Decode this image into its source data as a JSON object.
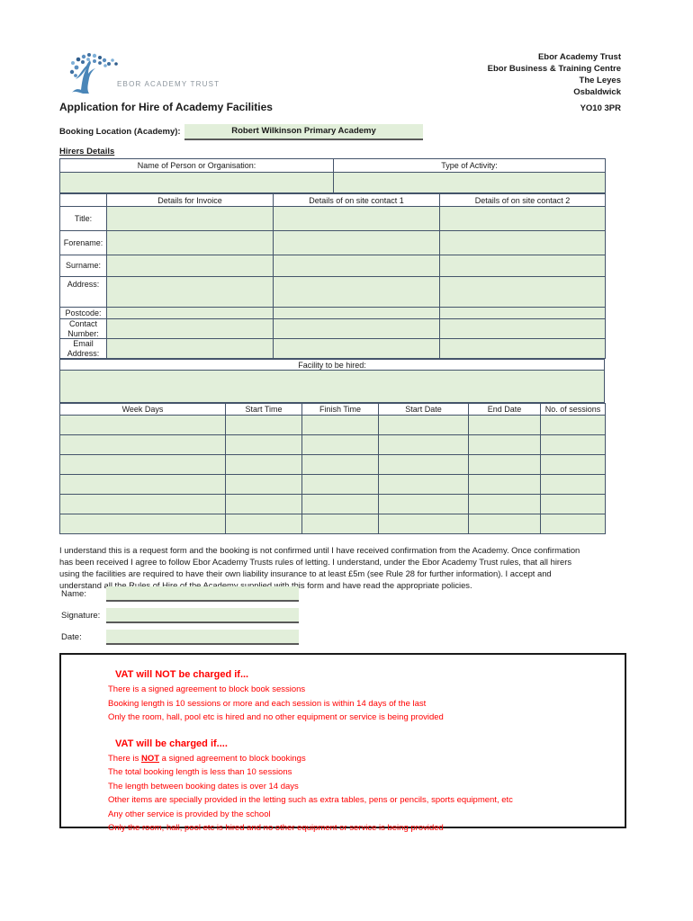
{
  "colors": {
    "green": "#e2efda",
    "border": "#44546a",
    "red": "#ff0000"
  },
  "header": {
    "logo_text": "EBOR ACADEMY TRUST",
    "address_lines": [
      "Ebor Academy Trust",
      "Ebor Business & Training Centre",
      "The Leyes",
      "Osbaldwick",
      "YO10 3PR"
    ],
    "title": "Application for Hire of Academy Facilities"
  },
  "booking": {
    "label": "Booking Location (Academy):",
    "value": "Robert Wilkinson Primary Academy"
  },
  "hirers": {
    "section_title": "Hirers Details",
    "name_header": "Name of Person or Organisation:",
    "activity_header": "Type of Activity:",
    "name_value": "",
    "activity_value": "",
    "columns": [
      "Details for Invoice",
      "Details of on site contact 1",
      "Details of on site contact 2"
    ],
    "row_labels": [
      "Title:",
      "Forename:",
      "Surname:",
      "Address:",
      "Postcode:",
      "Contact Number:",
      "Email Address:"
    ]
  },
  "facility": {
    "header": "Facility to be hired:",
    "value": ""
  },
  "schedule": {
    "columns": [
      "Week Days",
      "Start Time",
      "Finish Time",
      "Start Date",
      "End Date",
      "No. of sessions"
    ],
    "empty_rows": 6
  },
  "declaration": {
    "text": "I understand this is a request form and the booking is not confirmed until I have received confirmation from the Academy. Once confirmation has been received I agree to follow Ebor Academy Trusts rules of letting.  I understand, under the Ebor Academy Trust rules, that all hirers using the facilities are required to have their own liability insurance to at least £5m (see Rule 28 for further information).  I accept and understand all the Rules of Hire of the Academy supplied with this form and have read the appropriate policies.",
    "fields": [
      "Name:",
      "Signature:",
      "Date:"
    ]
  },
  "vat": {
    "not_charged": {
      "heading": "VAT will NOT be charged if...",
      "items": [
        "There is a signed agreement to block book sessions",
        "Booking length is 10 sessions or more and each session is within 14 days of the last",
        "Only the room, hall, pool etc is hired and no other equipment or service is being provided"
      ]
    },
    "charged": {
      "heading": "VAT will be charged if....",
      "first_item": {
        "pre": "There is ",
        "not": "NOT",
        "post": " a signed agreement  to block bookings"
      },
      "items": [
        "The total booking length is less than 10 sessions",
        "The length between booking dates is over 14 days",
        "Other items are specially provided in the letting such as extra tables, pens or pencils, sports equipment, etc",
        "Any other service is provided by the school",
        "Only the room, hall, pool etc is hired and no other equipment or service is being provided"
      ]
    }
  }
}
